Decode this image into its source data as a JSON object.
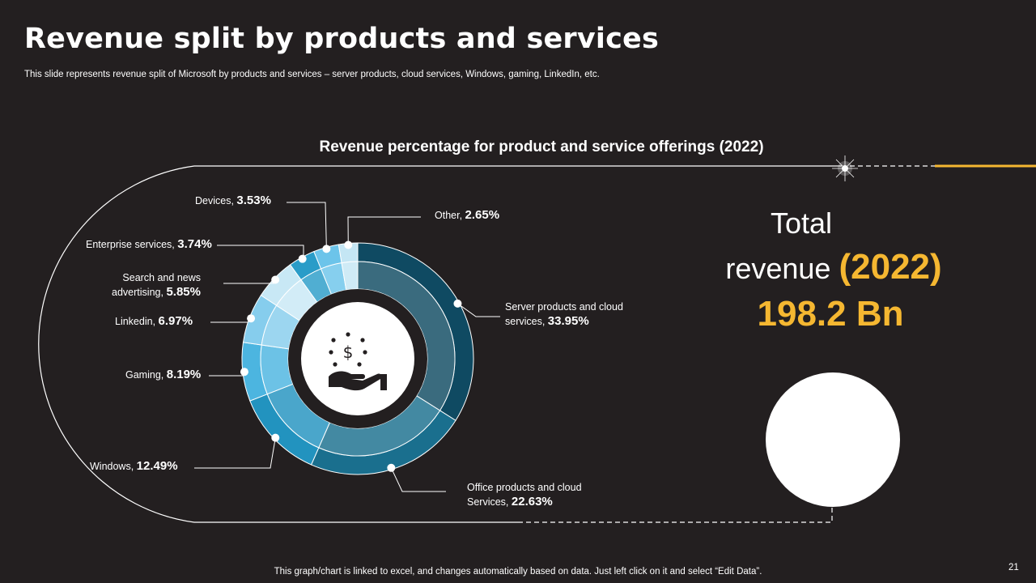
{
  "slide": {
    "title": "Revenue split by products and services",
    "subtitle": "This slide represents revenue split of Microsoft by products and services – server products, cloud services, Windows, gaming, LinkedIn, etc.",
    "footer": "This graph/chart is linked to excel, and changes automatically based on data. Just left click on it and select “Edit Data”.",
    "page_number": "21"
  },
  "total": {
    "line1": "Total",
    "line2": "revenue",
    "year": "(2022)",
    "value": "198.2 Bn"
  },
  "icons": {
    "center": "money-hand-icon",
    "money_bag": "money-bag-growth-icon"
  },
  "colors": {
    "background": "#231f20",
    "accent": "#f5b731"
  },
  "chart_data": {
    "type": "pie",
    "style": "donut",
    "title": "Revenue percentage for product and service offerings (2022)",
    "unit": "%",
    "series": [
      {
        "name": "Server products and cloud services",
        "label": "Server products and cloud services,",
        "value": 33.95,
        "value_text": "33.95%",
        "color": "#0f4a62"
      },
      {
        "name": "Office products and cloud Services",
        "label": "Office products and cloud Services,",
        "value": 22.63,
        "value_text": "22.63%",
        "color": "#1a6f8e"
      },
      {
        "name": "Windows",
        "label": "Windows,",
        "value": 12.49,
        "value_text": "12.49%",
        "color": "#2293bf"
      },
      {
        "name": "Gaming",
        "label": "Gaming,",
        "value": 8.19,
        "value_text": "8.19%",
        "color": "#4cb5e0"
      },
      {
        "name": "Linkedin",
        "label": "Linkedin,",
        "value": 6.97,
        "value_text": "6.97%",
        "color": "#86cded"
      },
      {
        "name": "Search and news advertising",
        "label": "Search and news advertising,",
        "label_line1": "Search and news",
        "label_line2": "advertising,",
        "value": 5.85,
        "value_text": "5.85%",
        "color": "#c8e8f5"
      },
      {
        "name": "Enterprise services",
        "label": "Enterprise services,",
        "value": 3.74,
        "value_text": "3.74%",
        "color": "#2a9cc8"
      },
      {
        "name": "Devices",
        "label": "Devices,",
        "value": 3.53,
        "value_text": "3.53%",
        "color": "#6cc4ea"
      },
      {
        "name": "Other",
        "label": "Other,",
        "value": 2.65,
        "value_text": "2.65%",
        "color": "#c4e6f4"
      }
    ]
  }
}
